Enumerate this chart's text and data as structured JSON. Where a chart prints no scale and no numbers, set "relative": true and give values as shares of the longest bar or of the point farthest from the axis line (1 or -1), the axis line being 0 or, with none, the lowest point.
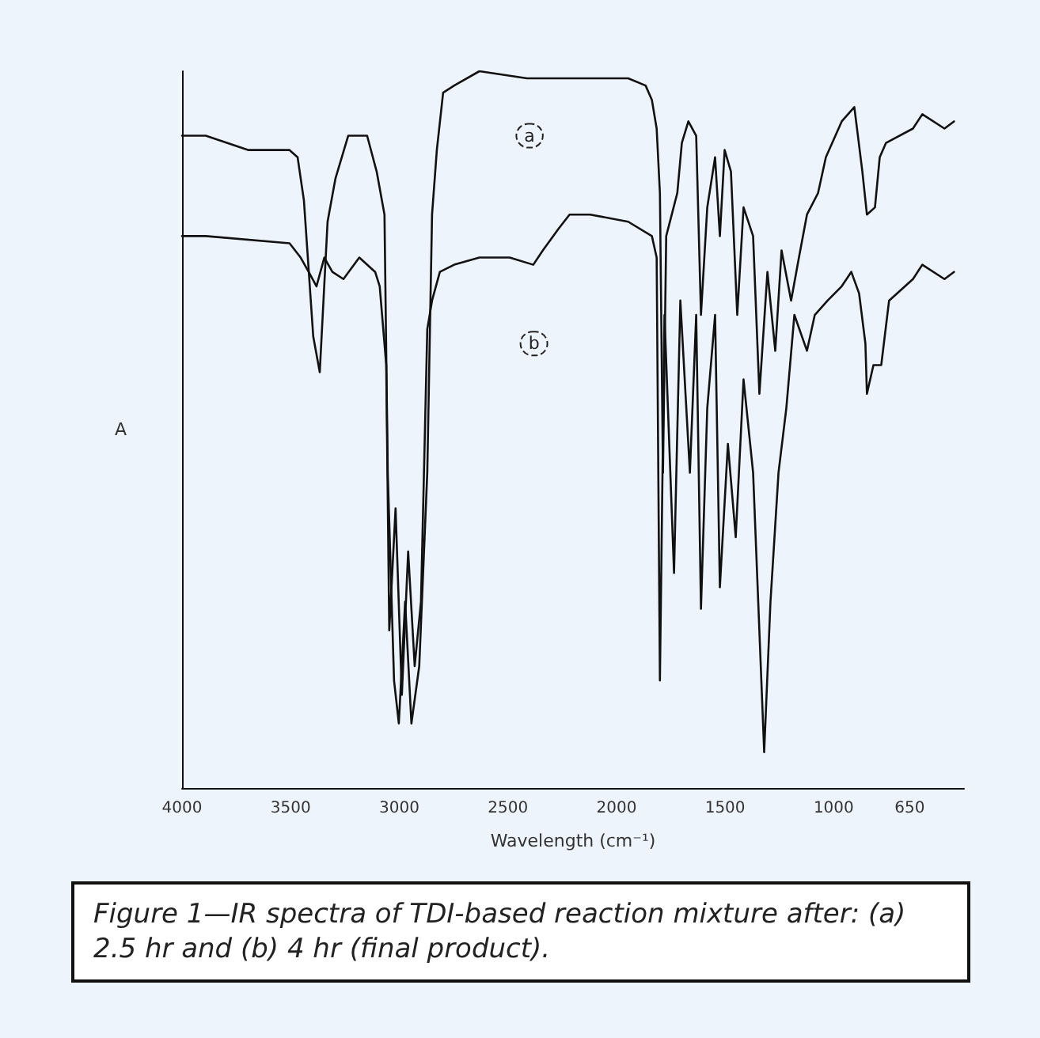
{
  "chart_data": {
    "type": "line",
    "relative": true,
    "xlabel": "Wavelength (cm⁻¹)",
    "ylabel": "A",
    "xlim": [
      4000,
      400
    ],
    "xticks": [
      4000,
      3500,
      3000,
      2500,
      2000,
      1500,
      1000,
      650
    ],
    "grid": false,
    "marker": "none",
    "line_style": "solid",
    "annotations": [
      {
        "text": "a",
        "x": 2400,
        "y": 0.91
      },
      {
        "text": "b",
        "x": 2380,
        "y": 0.62
      },
      "Figure 1—IR spectra of TDI-based reaction mixture after: (a) 2.5 hr and (b) 4 hr (final product)."
    ],
    "series": [
      {
        "color": "#111111",
        "x": [
          4000,
          3891,
          3694,
          3505,
          3468,
          3439,
          3396,
          3366,
          3330,
          3294,
          3235,
          3148,
          3104,
          3068,
          3053,
          3024,
          3002,
          2973,
          2944,
          2908,
          2871,
          2849,
          2827,
          2798,
          2747,
          2631,
          2412,
          2216,
          1946,
          1866,
          1837,
          1815,
          1800,
          1786,
          1771,
          1720,
          1699,
          1669,
          1633,
          1611,
          1582,
          1546,
          1524,
          1502,
          1473,
          1444,
          1415,
          1371,
          1342,
          1305,
          1269,
          1240,
          1196,
          1160,
          1123,
          1072,
          1036,
          963,
          905,
          868,
          847,
          810,
          788,
          759,
          635,
          592,
          490,
          446
        ],
        "values": [
          0.91,
          0.91,
          0.89,
          0.89,
          0.88,
          0.82,
          0.63,
          0.58,
          0.79,
          0.85,
          0.91,
          0.91,
          0.86,
          0.8,
          0.44,
          0.15,
          0.09,
          0.26,
          0.09,
          0.17,
          0.44,
          0.8,
          0.89,
          0.97,
          0.98,
          1.0,
          0.99,
          0.99,
          0.99,
          0.98,
          0.96,
          0.92,
          0.83,
          0.44,
          0.77,
          0.83,
          0.9,
          0.93,
          0.91,
          0.66,
          0.81,
          0.88,
          0.77,
          0.89,
          0.86,
          0.66,
          0.81,
          0.77,
          0.55,
          0.72,
          0.61,
          0.75,
          0.68,
          0.74,
          0.8,
          0.83,
          0.88,
          0.93,
          0.95,
          0.86,
          0.8,
          0.81,
          0.88,
          0.9,
          0.92,
          0.94,
          0.92,
          0.93
        ]
      },
      {
        "color": "#111111",
        "x": [
          4000,
          3891,
          3505,
          3454,
          3417,
          3381,
          3345,
          3308,
          3257,
          3184,
          3111,
          3090,
          3060,
          3046,
          3017,
          2988,
          2959,
          2929,
          2900,
          2871,
          2849,
          2813,
          2747,
          2631,
          2558,
          2492,
          2383,
          2339,
          2267,
          2216,
          2121,
          1946,
          1837,
          1815,
          1800,
          1779,
          1735,
          1706,
          1662,
          1633,
          1611,
          1582,
          1546,
          1524,
          1487,
          1451,
          1415,
          1371,
          1320,
          1291,
          1254,
          1218,
          1181,
          1123,
          1087,
          1028,
          963,
          919,
          883,
          854,
          847,
          817,
          781,
          745,
          635,
          592,
          490,
          446
        ],
        "values": [
          0.77,
          0.77,
          0.76,
          0.74,
          0.72,
          0.7,
          0.74,
          0.72,
          0.71,
          0.74,
          0.72,
          0.7,
          0.59,
          0.22,
          0.39,
          0.13,
          0.33,
          0.17,
          0.26,
          0.64,
          0.68,
          0.72,
          0.73,
          0.74,
          0.74,
          0.74,
          0.73,
          0.75,
          0.78,
          0.8,
          0.8,
          0.79,
          0.77,
          0.74,
          0.15,
          0.66,
          0.3,
          0.68,
          0.44,
          0.66,
          0.25,
          0.53,
          0.66,
          0.28,
          0.48,
          0.35,
          0.57,
          0.44,
          0.05,
          0.26,
          0.44,
          0.53,
          0.66,
          0.61,
          0.66,
          0.68,
          0.7,
          0.72,
          0.69,
          0.62,
          0.55,
          0.59,
          0.59,
          0.68,
          0.71,
          0.73,
          0.71,
          0.72
        ]
      }
    ]
  }
}
